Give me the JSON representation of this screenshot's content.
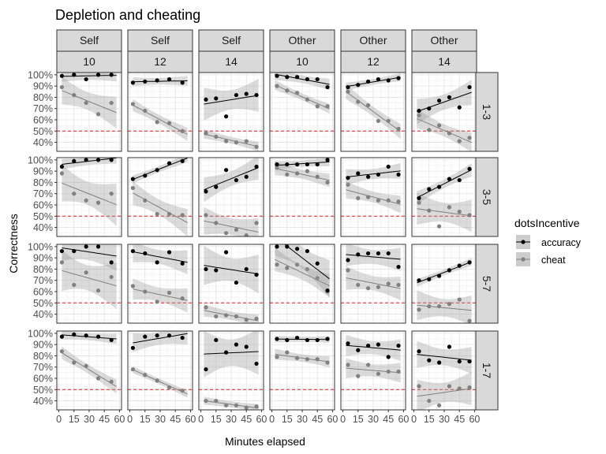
{
  "chart_data": {
    "type": "scatter",
    "title": "Depletion and cheating",
    "xlabel": "Minutes elapsed",
    "ylabel": "Correctness",
    "xlim": [
      -2,
      62
    ],
    "ylim": [
      0.32,
      1.02
    ],
    "x_ticks": [
      0,
      15,
      30,
      45,
      60
    ],
    "x_tick_labels": [
      "0",
      "15",
      "30",
      "45",
      "60"
    ],
    "y_ticks": [
      0.4,
      0.5,
      0.6,
      0.7,
      0.8,
      0.9,
      1.0
    ],
    "y_tick_labels": [
      "40%",
      "50%",
      "60%",
      "70%",
      "80%",
      "90%",
      "100%"
    ],
    "reference_line": {
      "y": 0.5,
      "style": "dashed",
      "color": "#e41a1c"
    },
    "grid": true,
    "legend": {
      "title": "dotsIncentive",
      "placement": "right",
      "entries": [
        "accuracy",
        "cheat"
      ]
    },
    "facet_columns": [
      {
        "top": "Self",
        "bottom": "10"
      },
      {
        "top": "Self",
        "bottom": "12"
      },
      {
        "top": "Self",
        "bottom": "14"
      },
      {
        "top": "Other",
        "bottom": "10"
      },
      {
        "top": "Other",
        "bottom": "12"
      },
      {
        "top": "Other",
        "bottom": "14"
      }
    ],
    "facet_rows": [
      "1-3",
      "3-5",
      "5-7",
      "1-7"
    ],
    "series_styles": {
      "accuracy": {
        "point_color": "#000000",
        "line_color": "#000000"
      },
      "cheat": {
        "point_color": "#808080",
        "line_color": "#808080"
      }
    },
    "panels": [
      [
        {
          "accuracy": {
            "x": [
              3,
              15,
              27,
              39,
              52
            ],
            "y": [
              0.99,
              1.0,
              0.96,
              1.0,
              1.0
            ]
          },
          "cheat": {
            "x": [
              3,
              15,
              27,
              39,
              52
            ],
            "y": [
              0.89,
              0.82,
              0.75,
              0.65,
              0.75
            ]
          }
        },
        {
          "accuracy": {
            "x": [
              3,
              15,
              27,
              39,
              52
            ],
            "y": [
              0.93,
              0.94,
              0.95,
              0.96,
              0.93
            ]
          },
          "cheat": {
            "x": [
              3,
              15,
              27,
              39,
              52
            ],
            "y": [
              0.74,
              0.68,
              0.58,
              0.57,
              0.5
            ]
          }
        },
        {
          "accuracy": {
            "x": [
              5,
              15,
              25,
              35,
              45,
              55
            ],
            "y": [
              0.78,
              0.79,
              0.63,
              0.82,
              0.83,
              0.82
            ]
          },
          "cheat": {
            "x": [
              5,
              15,
              25,
              35,
              45,
              55
            ],
            "y": [
              0.48,
              0.45,
              0.41,
              0.4,
              0.41,
              0.36
            ]
          }
        },
        {
          "accuracy": {
            "x": [
              5,
              15,
              25,
              35,
              45,
              55
            ],
            "y": [
              0.99,
              0.98,
              0.98,
              0.96,
              0.96,
              0.89
            ]
          },
          "cheat": {
            "x": [
              5,
              15,
              25,
              35,
              45,
              55
            ],
            "y": [
              0.9,
              0.86,
              0.84,
              0.78,
              0.72,
              0.72
            ]
          }
        },
        {
          "accuracy": {
            "x": [
              5,
              15,
              25,
              35,
              45,
              55
            ],
            "y": [
              0.89,
              0.91,
              0.94,
              0.96,
              0.95,
              0.97
            ]
          },
          "cheat": {
            "x": [
              5,
              15,
              25,
              35,
              45,
              55
            ],
            "y": [
              0.85,
              0.76,
              0.73,
              0.59,
              0.59,
              0.52
            ]
          }
        },
        {
          "accuracy": {
            "x": [
              5,
              15,
              25,
              35,
              45,
              55
            ],
            "y": [
              0.68,
              0.7,
              0.77,
              0.8,
              0.71,
              0.89
            ]
          },
          "cheat": {
            "x": [
              5,
              15,
              25,
              35,
              45,
              55
            ],
            "y": [
              0.64,
              0.51,
              0.55,
              0.48,
              0.41,
              0.44
            ]
          }
        }
      ],
      [
        {
          "accuracy": {
            "x": [
              3,
              15,
              27,
              39,
              52
            ],
            "y": [
              0.94,
              0.99,
              1.0,
              1.0,
              1.0
            ]
          },
          "cheat": {
            "x": [
              3,
              15,
              27,
              39,
              52
            ],
            "y": [
              0.88,
              0.7,
              0.64,
              0.62,
              0.7
            ]
          }
        },
        {
          "accuracy": {
            "x": [
              3,
              15,
              27,
              39,
              52
            ],
            "y": [
              0.83,
              0.86,
              0.91,
              0.97,
              0.99
            ]
          },
          "cheat": {
            "x": [
              3,
              15,
              27,
              39,
              52
            ],
            "y": [
              0.75,
              0.64,
              0.52,
              0.52,
              0.51
            ]
          }
        },
        {
          "accuracy": {
            "x": [
              5,
              15,
              25,
              35,
              45,
              55
            ],
            "y": [
              0.72,
              0.76,
              0.91,
              0.82,
              0.85,
              0.94
            ]
          },
          "cheat": {
            "x": [
              5,
              15,
              25,
              35,
              45,
              55
            ],
            "y": [
              0.51,
              0.44,
              0.35,
              0.38,
              0.33,
              0.44
            ]
          }
        },
        {
          "accuracy": {
            "x": [
              5,
              15,
              25,
              35,
              45,
              55
            ],
            "y": [
              0.96,
              0.96,
              0.96,
              0.96,
              0.96,
              1.0
            ]
          },
          "cheat": {
            "x": [
              5,
              15,
              25,
              35,
              45,
              55
            ],
            "y": [
              0.93,
              0.87,
              0.88,
              0.9,
              0.85,
              0.8
            ]
          }
        },
        {
          "accuracy": {
            "x": [
              5,
              15,
              25,
              35,
              45,
              55
            ],
            "y": [
              0.84,
              0.88,
              0.85,
              0.87,
              0.94,
              0.87
            ]
          },
          "cheat": {
            "x": [
              5,
              15,
              25,
              35,
              45,
              55
            ],
            "y": [
              0.78,
              0.66,
              0.67,
              0.64,
              0.64,
              0.63
            ]
          }
        },
        {
          "accuracy": {
            "x": [
              5,
              15,
              25,
              35,
              45,
              55
            ],
            "y": [
              0.66,
              0.74,
              0.76,
              0.83,
              0.82,
              0.92
            ]
          },
          "cheat": {
            "x": [
              5,
              15,
              25,
              35,
              45,
              55
            ],
            "y": [
              0.62,
              0.55,
              0.41,
              0.58,
              0.54,
              0.51
            ]
          }
        }
      ],
      [
        {
          "accuracy": {
            "x": [
              3,
              15,
              27,
              39,
              52
            ],
            "y": [
              0.96,
              0.96,
              1.0,
              1.0,
              0.86
            ]
          },
          "cheat": {
            "x": [
              3,
              15,
              27,
              39,
              52
            ],
            "y": [
              0.86,
              0.66,
              0.77,
              0.61,
              0.73
            ]
          }
        },
        {
          "accuracy": {
            "x": [
              3,
              15,
              27,
              39,
              52
            ],
            "y": [
              0.96,
              0.94,
              0.86,
              0.95,
              0.85
            ]
          },
          "cheat": {
            "x": [
              3,
              15,
              27,
              39,
              52
            ],
            "y": [
              0.65,
              0.6,
              0.51,
              0.59,
              0.54
            ]
          }
        },
        {
          "accuracy": {
            "x": [
              5,
              15,
              25,
              35,
              45,
              55
            ],
            "y": [
              0.8,
              0.79,
              0.95,
              0.68,
              0.8,
              0.75
            ]
          },
          "cheat": {
            "x": [
              5,
              15,
              25,
              35,
              45,
              55
            ],
            "y": [
              0.46,
              0.38,
              0.39,
              0.38,
              0.35,
              0.36
            ]
          }
        },
        {
          "accuracy": {
            "x": [
              5,
              15,
              25,
              35,
              45,
              55
            ],
            "y": [
              1.0,
              1.0,
              0.98,
              0.96,
              0.85,
              0.61
            ]
          },
          "cheat": {
            "x": [
              5,
              15,
              25,
              35,
              45,
              55
            ],
            "y": [
              0.84,
              0.81,
              0.84,
              0.8,
              0.72,
              0.6
            ]
          }
        },
        {
          "accuracy": {
            "x": [
              5,
              15,
              25,
              35,
              45,
              55
            ],
            "y": [
              0.88,
              0.93,
              0.94,
              0.94,
              0.94,
              0.82
            ]
          },
          "cheat": {
            "x": [
              5,
              15,
              25,
              35,
              45,
              55
            ],
            "y": [
              0.79,
              0.66,
              0.63,
              0.64,
              0.67,
              0.66
            ]
          }
        },
        {
          "accuracy": {
            "x": [
              5,
              15,
              25,
              35,
              45,
              55
            ],
            "y": [
              0.7,
              0.71,
              0.74,
              0.79,
              0.83,
              0.86
            ]
          },
          "cheat": {
            "x": [
              5,
              15,
              25,
              35,
              45,
              55
            ],
            "y": [
              0.44,
              0.47,
              0.47,
              0.49,
              0.53,
              0.34
            ]
          }
        }
      ],
      [
        {
          "accuracy": {
            "x": [
              3,
              15,
              27,
              39,
              52
            ],
            "y": [
              0.97,
              0.99,
              0.98,
              0.97,
              0.94
            ]
          },
          "cheat": {
            "x": [
              3,
              15,
              27,
              39,
              52
            ],
            "y": [
              0.84,
              0.74,
              0.71,
              0.6,
              0.57
            ]
          }
        },
        {
          "accuracy": {
            "x": [
              3,
              15,
              27,
              39,
              52
            ],
            "y": [
              0.87,
              0.97,
              0.98,
              0.98,
              0.96
            ]
          },
          "cheat": {
            "x": [
              3,
              15,
              27,
              39,
              52
            ],
            "y": [
              0.68,
              0.63,
              0.58,
              0.52,
              0.49
            ]
          }
        },
        {
          "accuracy": {
            "x": [
              5,
              15,
              25,
              35,
              45,
              55
            ],
            "y": [
              0.68,
              0.94,
              0.83,
              0.9,
              0.88,
              0.73
            ]
          },
          "cheat": {
            "x": [
              5,
              15,
              25,
              35,
              45,
              55
            ],
            "y": [
              0.4,
              0.4,
              0.36,
              0.36,
              0.34,
              0.35
            ]
          }
        },
        {
          "accuracy": {
            "x": [
              5,
              15,
              25,
              35,
              45,
              55
            ],
            "y": [
              0.95,
              0.94,
              0.96,
              0.94,
              0.94,
              0.95
            ]
          },
          "cheat": {
            "x": [
              5,
              15,
              25,
              35,
              45,
              55
            ],
            "y": [
              0.79,
              0.83,
              0.78,
              0.77,
              0.77,
              0.74
            ]
          }
        },
        {
          "accuracy": {
            "x": [
              5,
              15,
              25,
              35,
              45,
              55
            ],
            "y": [
              0.91,
              0.85,
              0.89,
              0.9,
              0.79,
              0.89
            ]
          },
          "cheat": {
            "x": [
              5,
              15,
              25,
              35,
              45,
              55
            ],
            "y": [
              0.72,
              0.62,
              0.72,
              0.64,
              0.66,
              0.66
            ]
          }
        },
        {
          "accuracy": {
            "x": [
              5,
              15,
              25,
              35,
              45,
              55
            ],
            "y": [
              0.84,
              0.76,
              0.74,
              0.88,
              0.75,
              0.75
            ]
          },
          "cheat": {
            "x": [
              5,
              15,
              25,
              35,
              45,
              55
            ],
            "y": [
              0.53,
              0.4,
              0.36,
              0.53,
              0.51,
              0.52
            ]
          }
        }
      ]
    ]
  }
}
